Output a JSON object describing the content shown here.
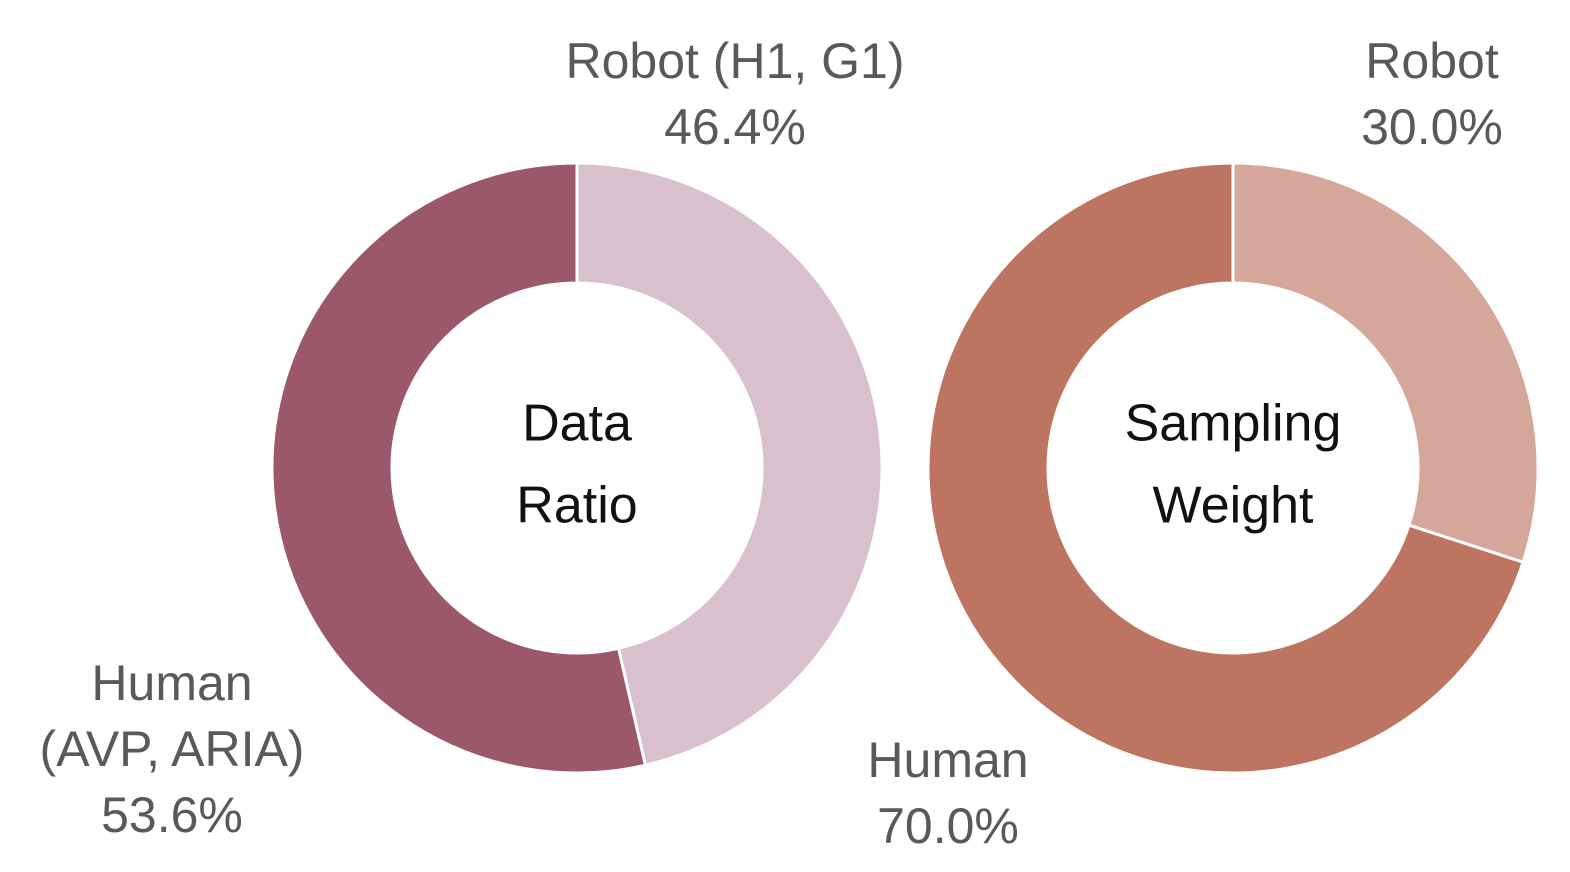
{
  "chart_data": [
    {
      "type": "donut",
      "center_label": [
        "Data",
        "Ratio"
      ],
      "categories": [
        "Robot (H1, G1)",
        "Human\n(AVP, ARIA)"
      ],
      "values": [
        46.4,
        53.6
      ],
      "value_labels": [
        "46.4%",
        "53.6%"
      ],
      "colors": [
        "#d8c0cc",
        "#9b586b"
      ]
    },
    {
      "type": "donut",
      "center_label": [
        "Sampling",
        "Weight"
      ],
      "categories": [
        "Robot",
        "Human"
      ],
      "values": [
        30.0,
        70.0
      ],
      "value_labels": [
        "30.0%",
        "70.0%"
      ],
      "colors": [
        "#d4a79a",
        "#bd7561"
      ]
    }
  ]
}
